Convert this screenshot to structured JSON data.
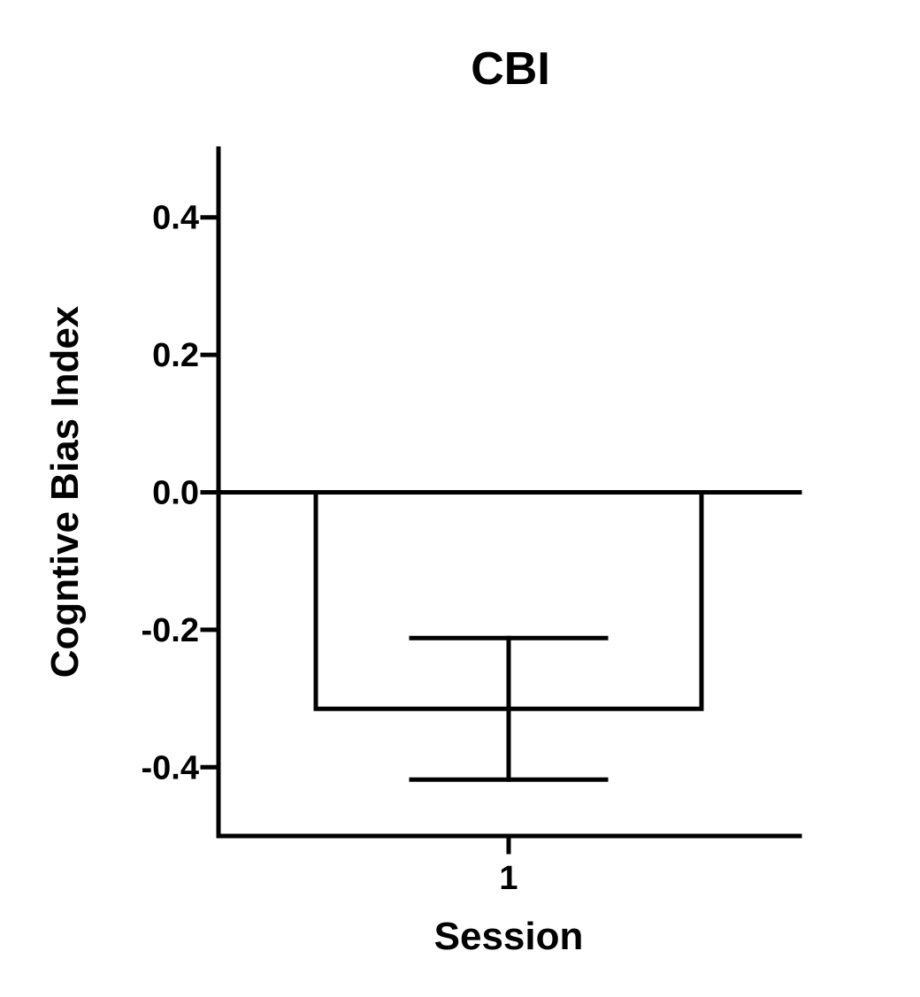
{
  "chart_data": {
    "type": "bar",
    "title": "CBI",
    "xlabel": "Session",
    "ylabel": "Cogntive Bias Index",
    "categories": [
      "1"
    ],
    "values": [
      -0.315
    ],
    "error": [
      0.103
    ],
    "ylim": [
      -0.5,
      0.5
    ],
    "yticks": [
      0.4,
      0.2,
      0.0,
      -0.2,
      -0.4
    ],
    "ytick_labels": [
      "0.4",
      "0.2",
      "0.0",
      "-0.2",
      "-0.4"
    ],
    "bar_fill": "#ffffff",
    "line_color": "#000000",
    "grid": false
  }
}
